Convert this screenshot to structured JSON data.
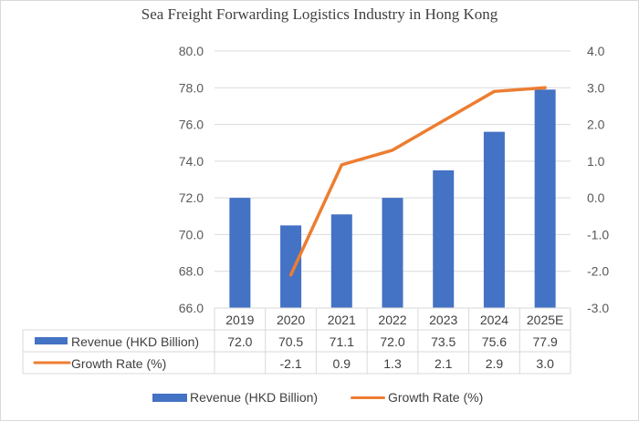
{
  "chart_data": {
    "type": "bar",
    "title": "Sea Freight Forwarding Logistics Industry in Hong Kong",
    "categories": [
      "2019",
      "2020",
      "2021",
      "2022",
      "2023",
      "2024",
      "2025E"
    ],
    "series": [
      {
        "name": "Revenue (HKD Billion)",
        "type": "bar",
        "axis": "left",
        "color": "#4472c4",
        "values": [
          72.0,
          70.5,
          71.1,
          72.0,
          73.5,
          75.6,
          77.9
        ],
        "labels": [
          "72.0",
          "70.5",
          "71.1",
          "72.0",
          "73.5",
          "75.6",
          "77.9"
        ]
      },
      {
        "name": "Growth Rate (%)",
        "type": "line",
        "axis": "right",
        "color": "#ed7d31",
        "values": [
          null,
          -2.1,
          0.9,
          1.3,
          2.1,
          2.9,
          3.0
        ],
        "labels": [
          "",
          "-2.1",
          "0.9",
          "1.3",
          "2.1",
          "2.9",
          "3.0"
        ]
      }
    ],
    "left_axis": {
      "ylim": [
        66.0,
        80.0
      ],
      "ticks": [
        "66.0",
        "68.0",
        "70.0",
        "72.0",
        "74.0",
        "76.0",
        "78.0",
        "80.0"
      ]
    },
    "right_axis": {
      "ylim": [
        -3.0,
        4.0
      ],
      "ticks": [
        "-3.0",
        "-2.0",
        "-1.0",
        "0.0",
        "1.0",
        "2.0",
        "3.0",
        "4.0"
      ]
    },
    "grid": true,
    "legend_position": "bottom",
    "data_table": true
  }
}
